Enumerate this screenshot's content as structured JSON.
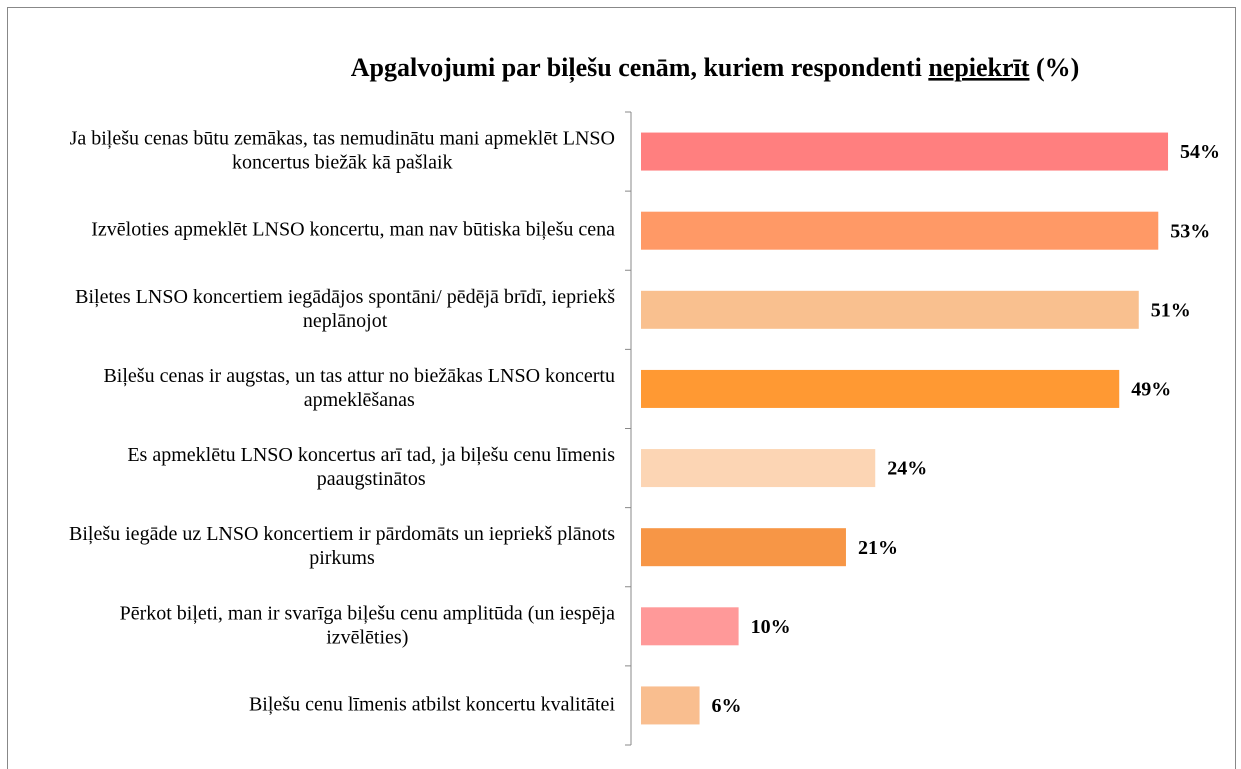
{
  "chart_data": {
    "type": "bar",
    "orientation": "horizontal",
    "title": [
      "Apgalvojumi par biļešu cenām, kuriem respondenti",
      "nepiekrīt",
      "(%)"
    ],
    "categories": [
      "Ja biļešu cenas būtu zemākas, tas nemudinātu mani apmeklēt LNSO koncertus biežāk kā pašlaik",
      "Izvēloties apmeklēt LNSO koncertu, man nav būtiska biļešu cena",
      "Biļetes LNSO koncertiem iegādājos spontāni/ pēdējā brīdī, iepriekš neplānojot",
      "Biļešu cenas ir augstas, un tas attur no biežākas LNSO koncertu apmeklēšanas",
      "Es apmeklētu LNSO koncertus arī tad, ja biļešu cenu līmenis paaugstinātos",
      "Biļešu iegāde uz LNSO koncertiem ir pārdomāts un iepriekš plānots pirkums",
      "Pērkot biļeti, man ir svarīga biļešu cenu amplitūda (un iespēja izvēlēties)",
      "Biļešu cenu līmenis atbilst koncertu kvalitātei"
    ],
    "values": [
      54,
      53,
      51,
      49,
      24,
      21,
      10,
      6
    ],
    "value_labels": [
      "54%",
      "53%",
      "51%",
      "49%",
      "24%",
      "21%",
      "10%",
      "6%"
    ],
    "colors": [
      "#ff7f7f",
      "#ff9966",
      "#f9c08f",
      "#ff9933",
      "#fcd5b4",
      "#f79646",
      "#ff9999",
      "#f9be8f"
    ]
  }
}
